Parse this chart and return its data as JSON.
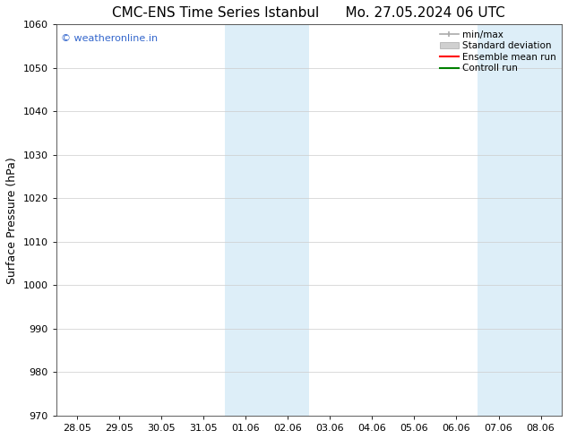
{
  "title_left": "CMC-ENS Time Series Istanbul",
  "title_right": "Mo. 27.05.2024 06 UTC",
  "ylabel": "Surface Pressure (hPa)",
  "ylim": [
    970,
    1060
  ],
  "yticks": [
    970,
    980,
    990,
    1000,
    1010,
    1020,
    1030,
    1040,
    1050,
    1060
  ],
  "xtick_labels": [
    "28.05",
    "29.05",
    "30.05",
    "31.05",
    "01.06",
    "02.06",
    "03.06",
    "04.06",
    "05.06",
    "06.06",
    "07.06",
    "08.06"
  ],
  "xtick_positions": [
    0,
    1,
    2,
    3,
    4,
    5,
    6,
    7,
    8,
    9,
    10,
    11
  ],
  "xlim": [
    -0.5,
    11.5
  ],
  "shaded_bands": [
    {
      "x_start": 3.5,
      "x_end": 4.5,
      "color": "#ddeef8"
    },
    {
      "x_start": 4.5,
      "x_end": 5.5,
      "color": "#ddeef8"
    },
    {
      "x_start": 9.5,
      "x_end": 10.5,
      "color": "#ddeef8"
    },
    {
      "x_start": 10.5,
      "x_end": 11.5,
      "color": "#ddeef8"
    }
  ],
  "legend_labels": [
    "min/max",
    "Standard deviation",
    "Ensemble mean run",
    "Controll run"
  ],
  "legend_colors": [
    "#aaaaaa",
    "#cccccc",
    "red",
    "green"
  ],
  "watermark": "© weatheronline.in",
  "watermark_color": "#3366cc",
  "bg_color": "#ffffff",
  "plot_bg_color": "#ffffff",
  "grid_color": "#cccccc",
  "title_fontsize": 11,
  "tick_fontsize": 8,
  "ylabel_fontsize": 9,
  "legend_fontsize": 7.5
}
